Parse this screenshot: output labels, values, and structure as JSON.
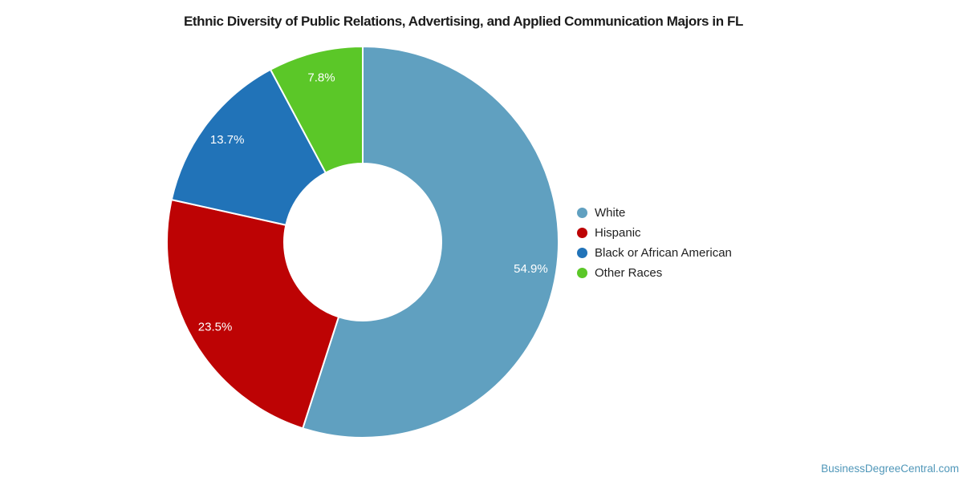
{
  "title": "Ethnic Diversity of Public Relations, Advertising, and Applied Communication Majors in FL",
  "footer": {
    "text": "BusinessDegreeCentral.com",
    "color": "#5097b9"
  },
  "chart_data": {
    "type": "pie",
    "subtype": "donut",
    "title": "Ethnic Diversity of Public Relations, Advertising, and Applied Communication Majors in FL",
    "legend_position": "right",
    "direction": "clockwise",
    "start_angle_deg": 0,
    "inner_radius_ratio": 0.4,
    "data_label_color": "#ffffff",
    "slices": [
      {
        "label": "White",
        "value": 54.9,
        "display": "54.9%",
        "color": "#60a0c0"
      },
      {
        "label": "Hispanic",
        "value": 23.5,
        "display": "23.5%",
        "color": "#bd0304"
      },
      {
        "label": "Black or African American",
        "value": 13.7,
        "display": "13.7%",
        "color": "#2173b8"
      },
      {
        "label": "Other Races",
        "value": 7.8,
        "display": "7.8%",
        "color": "#5bc728"
      }
    ]
  }
}
